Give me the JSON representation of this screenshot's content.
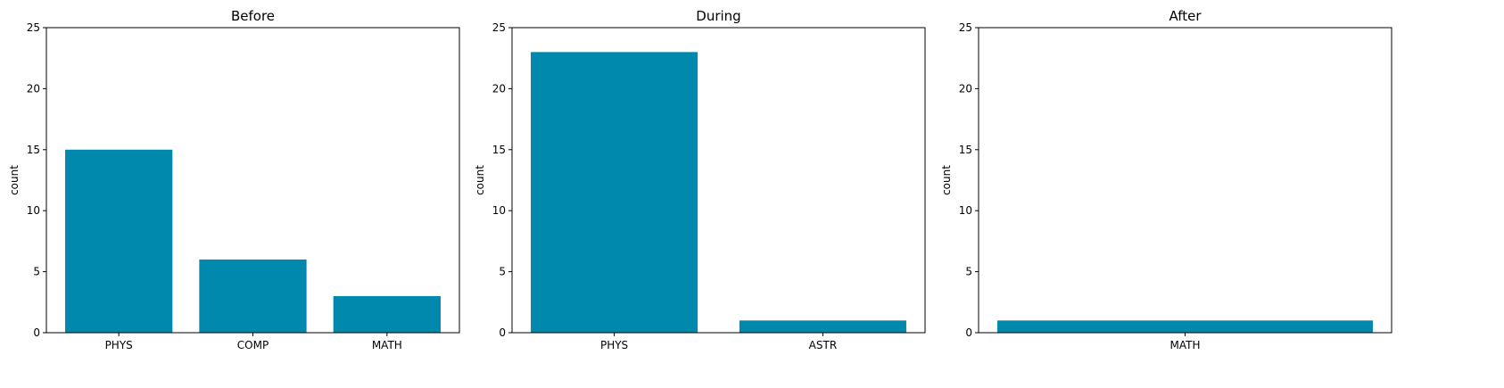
{
  "chart_data": [
    {
      "type": "bar",
      "title": "Before",
      "categories": [
        "PHYS",
        "COMP",
        "MATH"
      ],
      "values": [
        15,
        6,
        3
      ],
      "ylabel": "count",
      "xlabel": "",
      "ylim": [
        0,
        25
      ],
      "yticks": [
        0,
        5,
        10,
        15,
        20,
        25
      ],
      "color": "#0088ad"
    },
    {
      "type": "bar",
      "title": "During",
      "categories": [
        "PHYS",
        "ASTR"
      ],
      "values": [
        23,
        1
      ],
      "ylabel": "count",
      "xlabel": "",
      "ylim": [
        0,
        25
      ],
      "yticks": [
        0,
        5,
        10,
        15,
        20,
        25
      ],
      "color": "#0088ad"
    },
    {
      "type": "bar",
      "title": "After",
      "categories": [
        "MATH"
      ],
      "values": [
        1
      ],
      "ylabel": "count",
      "xlabel": "",
      "ylim": [
        0,
        25
      ],
      "yticks": [
        0,
        5,
        10,
        15,
        20,
        25
      ],
      "color": "#0088ad"
    }
  ]
}
